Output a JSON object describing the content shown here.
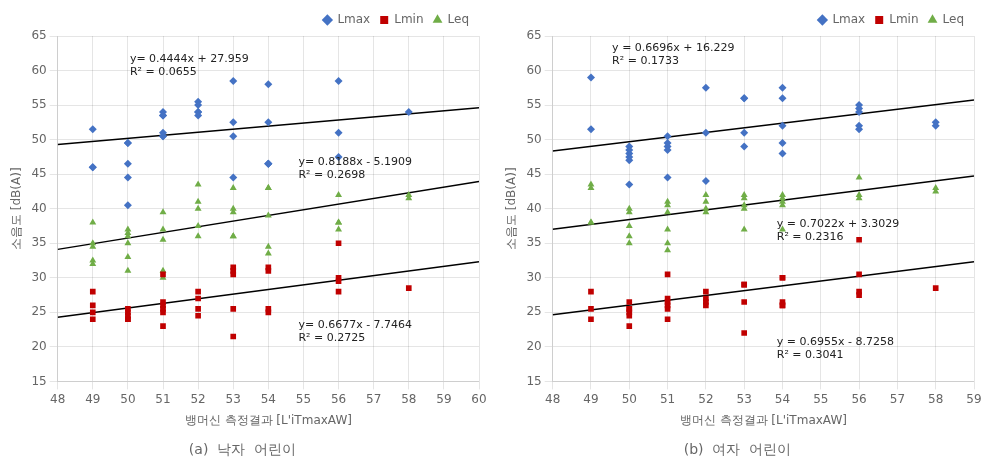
{
  "chart_data": [
    {
      "type": "scatter",
      "title": "(a)  낙자  어린이",
      "x_label": "뱅머신 측정결과 [L'iTmaxAW]",
      "y_label": "소음도 [dB(A)]",
      "xlim": [
        48,
        60
      ],
      "ylim": [
        15,
        65
      ],
      "xticks": [
        48,
        49,
        50,
        51,
        52,
        53,
        54,
        55,
        56,
        57,
        58,
        59,
        60
      ],
      "yticks": [
        15,
        20,
        25,
        30,
        35,
        40,
        45,
        50,
        55,
        60,
        65
      ],
      "grid": true,
      "legend": "upper right",
      "series": [
        {
          "name": "Lmax",
          "color": "#4472C4",
          "marker": "diamond",
          "x": [
            49,
            49,
            49,
            50,
            50,
            50,
            50,
            50,
            51,
            51,
            51,
            51,
            51,
            51,
            52,
            52,
            52,
            52,
            52,
            53,
            53,
            53,
            53,
            54,
            54,
            54,
            54,
            54,
            56,
            56,
            56,
            58
          ],
          "values": [
            51.5,
            46,
            46,
            49.5,
            49.5,
            46.5,
            44.5,
            40.5,
            50.5,
            50.5,
            54,
            53.5,
            53.5,
            51,
            54,
            54,
            55.5,
            55,
            53.5,
            58.5,
            52.5,
            50.5,
            44.5,
            58,
            52.5,
            46.5,
            46.5,
            46.5,
            58.5,
            51,
            47.5,
            54
          ]
        },
        {
          "name": "Lmin",
          "color": "#C00000",
          "marker": "square",
          "x": [
            49,
            49,
            49,
            49,
            50,
            50,
            50,
            50,
            50,
            51,
            51,
            51,
            51,
            51,
            51,
            52,
            52,
            52,
            52,
            53,
            53,
            53,
            53,
            53,
            54,
            54,
            54,
            54,
            56,
            56,
            56,
            56,
            58
          ],
          "values": [
            28,
            26,
            25,
            24,
            25.5,
            25,
            24.5,
            24,
            24,
            30.5,
            26.5,
            26,
            25.5,
            25,
            23,
            28,
            27,
            25.5,
            24.5,
            31.5,
            31,
            30.5,
            25.5,
            21.5,
            31.5,
            31,
            25.5,
            25,
            35,
            30,
            29.5,
            28,
            28.5
          ]
        },
        {
          "name": "Leq",
          "color": "#70AD47",
          "marker": "triangle",
          "x": [
            49,
            49,
            49,
            49,
            49,
            50,
            50,
            50,
            50,
            50,
            50,
            51,
            51,
            51,
            51,
            51,
            52,
            52,
            52,
            52,
            52,
            53,
            53,
            53,
            53,
            53,
            54,
            54,
            54,
            54,
            54,
            56,
            56,
            56,
            56,
            58,
            58
          ],
          "values": [
            38,
            35,
            34.5,
            32.5,
            32,
            37,
            36.5,
            36,
            35,
            33,
            31,
            39.5,
            37,
            35.5,
            31,
            30,
            43.5,
            41,
            40,
            37.5,
            36,
            43,
            40,
            39.5,
            36,
            36,
            43,
            43,
            39,
            34.5,
            33.5,
            42,
            38,
            38,
            37,
            42,
            41.5
          ]
        },
        {
          "type": "line",
          "color": "#000000",
          "line_style": "solid",
          "x": [
            48,
            60
          ],
          "values": [
            49.2902,
            54.623
          ]
        },
        {
          "type": "line",
          "color": "#000000",
          "line_style": "solid",
          "x": [
            48,
            60
          ],
          "values": [
            34.1115,
            43.9371
          ]
        },
        {
          "type": "line",
          "color": "#000000",
          "line_style": "solid",
          "x": [
            48,
            60
          ],
          "values": [
            24.3032,
            32.3156
          ]
        }
      ],
      "annotations": [
        {
          "text": "y= 0.4444x + 27.959\nR² = 0.0655",
          "x": 50.0,
          "y": 62.5
        },
        {
          "text": "y= 0.8188x - 5.1909\nR² = 0.2698",
          "x": 54.8,
          "y": 47.5
        },
        {
          "text": "y= 0.6677x - 7.7464\nR² = 0.2725",
          "x": 54.8,
          "y": 24.0
        }
      ]
    },
    {
      "type": "scatter",
      "title": "(b)  여자  어린이",
      "x_label": "뱅머신 측정결과 [L'iTmaxAW]",
      "y_label": "소음도 [dB(A)]",
      "xlim": [
        48,
        59
      ],
      "ylim": [
        15,
        65
      ],
      "xticks": [
        48,
        49,
        50,
        51,
        52,
        53,
        54,
        55,
        56,
        57,
        58,
        59
      ],
      "yticks": [
        15,
        20,
        25,
        30,
        35,
        40,
        45,
        50,
        55,
        60,
        65
      ],
      "grid": true,
      "legend": "upper right",
      "series": [
        {
          "name": "Lmax",
          "color": "#4472C4",
          "marker": "diamond",
          "x": [
            49,
            49,
            50,
            50,
            50,
            50,
            50,
            50,
            51,
            51,
            51,
            51,
            51,
            52,
            52,
            52,
            53,
            53,
            53,
            53,
            54,
            54,
            54,
            54,
            54,
            56,
            56,
            56,
            56,
            56,
            58,
            58
          ],
          "values": [
            59,
            51.5,
            49,
            48.5,
            48,
            47.5,
            47,
            43.5,
            50.5,
            49.5,
            49,
            48.5,
            44.5,
            57.5,
            51,
            44,
            56,
            56,
            51,
            49,
            57.5,
            56,
            52,
            49.5,
            48,
            55,
            54.5,
            54,
            52,
            51.5,
            52.5,
            52
          ]
        },
        {
          "name": "Lmin",
          "color": "#C00000",
          "marker": "square",
          "x": [
            49,
            49,
            49,
            50,
            50,
            50,
            50,
            50,
            50,
            51,
            51,
            51,
            51,
            51,
            51,
            52,
            52,
            52,
            52,
            53,
            53,
            53,
            53,
            54,
            54,
            54,
            54,
            54,
            56,
            56,
            56,
            56,
            58
          ],
          "values": [
            28,
            25.5,
            24,
            26.5,
            25.5,
            25.5,
            25,
            24.5,
            23,
            30.5,
            27,
            26.5,
            26,
            25.5,
            24,
            28,
            27,
            26.5,
            26,
            29,
            29,
            26.5,
            22,
            30,
            30,
            26.5,
            26,
            26,
            35.5,
            30.5,
            28,
            27.5,
            28.5
          ]
        },
        {
          "name": "Leq",
          "color": "#70AD47",
          "marker": "triangle",
          "x": [
            49,
            49,
            49,
            49,
            50,
            50,
            50,
            50,
            50,
            51,
            51,
            51,
            51,
            51,
            51,
            52,
            52,
            52,
            52,
            53,
            53,
            53,
            53,
            53,
            54,
            54,
            54,
            54,
            54,
            56,
            56,
            56,
            58,
            58
          ],
          "values": [
            43.5,
            43,
            38,
            38,
            40,
            39.5,
            37.5,
            36,
            35,
            41,
            40.5,
            39.5,
            37,
            35,
            34,
            42,
            41,
            40,
            39.5,
            42,
            41.5,
            40.5,
            40,
            37,
            42,
            41.5,
            41,
            40.5,
            37,
            44.5,
            42,
            41.5,
            43,
            42.5
          ]
        },
        {
          "type": "line",
          "color": "#000000",
          "line_style": "solid",
          "x": [
            48,
            59
          ],
          "values": [
            48.3698,
            55.7354
          ]
        },
        {
          "type": "line",
          "color": "#000000",
          "line_style": "solid",
          "x": [
            48,
            59
          ],
          "values": [
            37.0085,
            44.7327
          ]
        },
        {
          "type": "line",
          "color": "#000000",
          "line_style": "solid",
          "x": [
            48,
            59
          ],
          "values": [
            24.6582,
            32.3087
          ]
        }
      ],
      "annotations": [
        {
          "text": "y = 0.6696x + 16.229\nR² = 0.1733",
          "x": 49.5,
          "y": 64.0
        },
        {
          "text": "y = 0.7022x + 3.3029\nR² = 0.2316",
          "x": 53.8,
          "y": 38.5
        },
        {
          "text": "y = 0.6955x - 8.7258\nR² = 0.3041",
          "x": 53.8,
          "y": 21.5
        }
      ]
    }
  ]
}
